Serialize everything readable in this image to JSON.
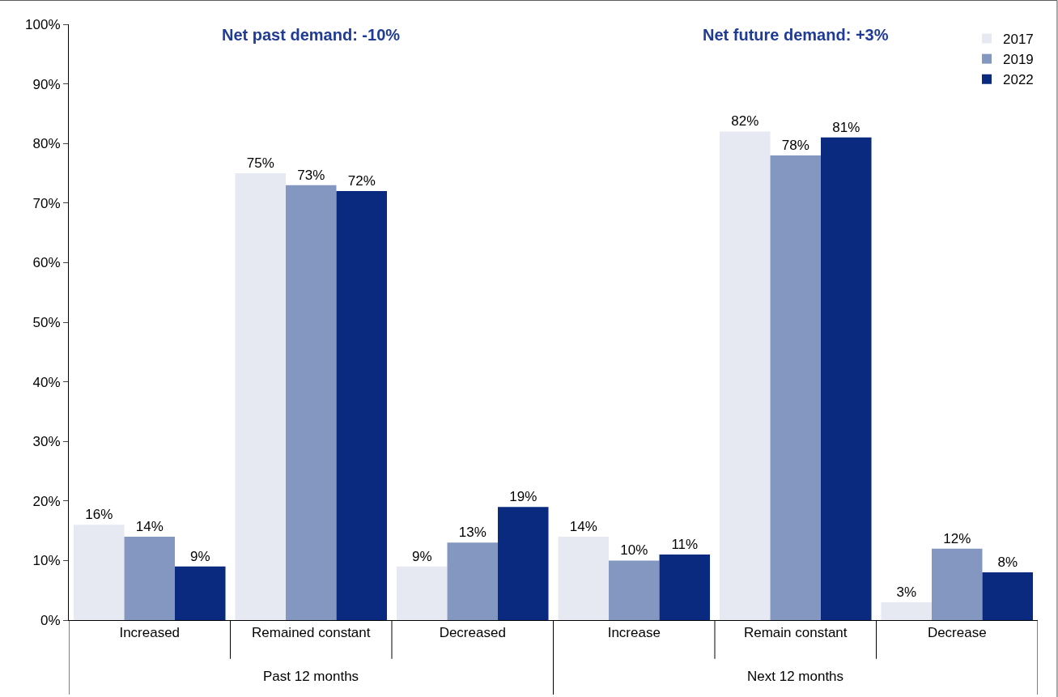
{
  "chart_data": {
    "type": "bar",
    "categories": [
      "Increased",
      "Remained constant",
      "Decreased",
      "Increase",
      "Remain constant",
      "Decrease"
    ],
    "series": [
      {
        "name": "2017",
        "color": "#e6e8f2",
        "values": [
          16,
          75,
          9,
          14,
          82,
          3
        ],
        "value_labels": [
          "16%",
          "75%",
          "9%",
          "14%",
          "82%",
          "3%"
        ]
      },
      {
        "name": "2019",
        "color": "#8497c0",
        "values": [
          14,
          73,
          13,
          10,
          78,
          12
        ],
        "value_labels": [
          "14%",
          "73%",
          "13%",
          "10%",
          "78%",
          "12%"
        ]
      },
      {
        "name": "2022",
        "color": "#0a2a80",
        "values": [
          9,
          72,
          19,
          11,
          81,
          8
        ],
        "value_labels": [
          "9%",
          "72%",
          "19%",
          "11%",
          "81%",
          "8%"
        ]
      }
    ],
    "annotations": [
      "Net past demand: -10%",
      "Net future demand: +3%",
      "Past 12 months",
      "Next 12 months"
    ],
    "ylim": [
      0,
      100
    ],
    "yticks": [
      {
        "value": 0,
        "label": "0%"
      },
      {
        "value": 10,
        "label": "10%"
      },
      {
        "value": 20,
        "label": "20%"
      },
      {
        "value": 30,
        "label": "30%"
      },
      {
        "value": 40,
        "label": "40%"
      },
      {
        "value": 50,
        "label": "50%"
      },
      {
        "value": 60,
        "label": "60%"
      },
      {
        "value": 70,
        "label": "70%"
      },
      {
        "value": 80,
        "label": "80%"
      },
      {
        "value": 90,
        "label": "90%"
      },
      {
        "value": 100,
        "label": "100%"
      }
    ],
    "legend": "top right"
  }
}
